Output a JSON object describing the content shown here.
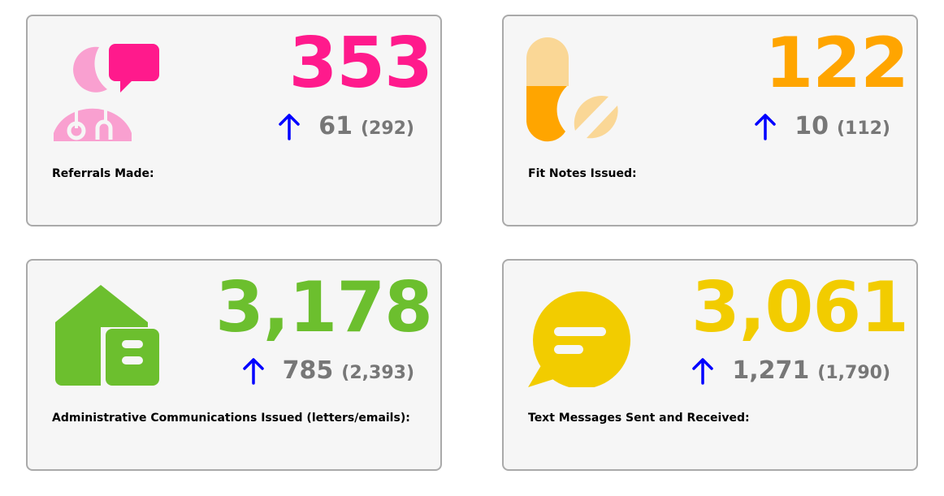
{
  "cards": [
    {
      "label": "Referrals Made:",
      "value": "353",
      "delta": "61",
      "previous": "(292)",
      "trend": "up",
      "color": "#ff1a8c",
      "icon": "doctor-chat-icon"
    },
    {
      "label": "Fit Notes Issued:",
      "value": "122",
      "delta": "10",
      "previous": "(112)",
      "trend": "up",
      "color": "#ffa500",
      "icon": "pills-icon"
    },
    {
      "label": "Administrative Communications Issued (letters/emails):",
      "value": "3,178",
      "delta": "785",
      "previous": "(2,393)",
      "trend": "up",
      "color": "#6cbf2e",
      "icon": "house-letter-icon"
    },
    {
      "label": "Text Messages Sent and Received:",
      "value": "3,061",
      "delta": "1,271",
      "previous": "(1,790)",
      "trend": "up",
      "color": "#f2cc00",
      "icon": "chat-bubble-icon"
    }
  ],
  "colors": {
    "trend_arrow": "#0000ff",
    "delta_text": "#777777",
    "card_bg": "#f6f6f6",
    "card_border": "#aaaaaa"
  }
}
